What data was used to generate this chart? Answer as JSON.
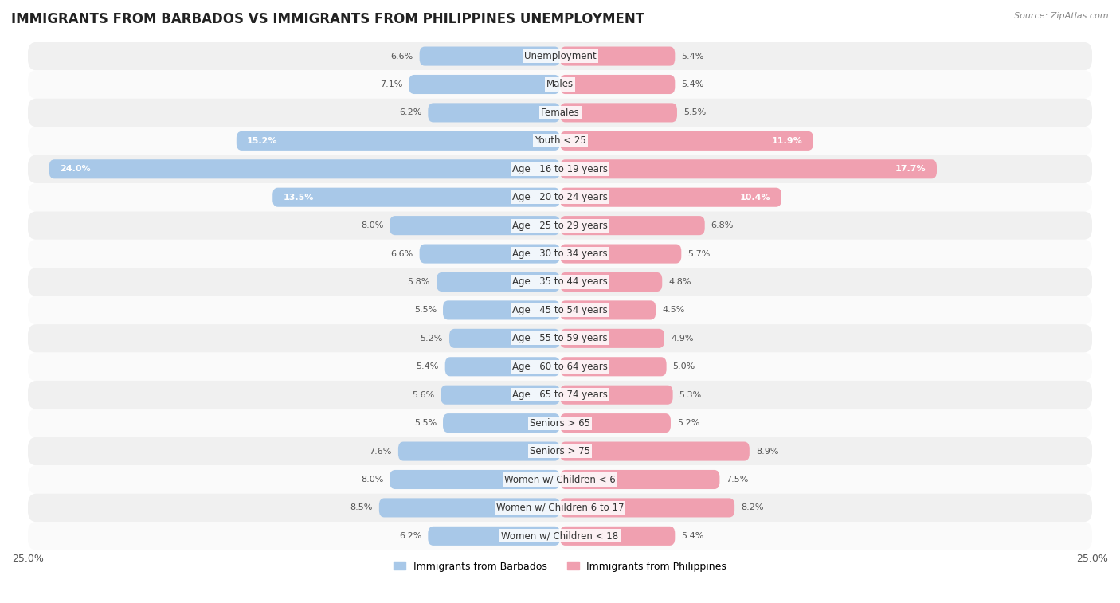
{
  "title": "IMMIGRANTS FROM BARBADOS VS IMMIGRANTS FROM PHILIPPINES UNEMPLOYMENT",
  "source": "Source: ZipAtlas.com",
  "categories": [
    "Unemployment",
    "Males",
    "Females",
    "Youth < 25",
    "Age | 16 to 19 years",
    "Age | 20 to 24 years",
    "Age | 25 to 29 years",
    "Age | 30 to 34 years",
    "Age | 35 to 44 years",
    "Age | 45 to 54 years",
    "Age | 55 to 59 years",
    "Age | 60 to 64 years",
    "Age | 65 to 74 years",
    "Seniors > 65",
    "Seniors > 75",
    "Women w/ Children < 6",
    "Women w/ Children 6 to 17",
    "Women w/ Children < 18"
  ],
  "barbados_values": [
    6.6,
    7.1,
    6.2,
    15.2,
    24.0,
    13.5,
    8.0,
    6.6,
    5.8,
    5.5,
    5.2,
    5.4,
    5.6,
    5.5,
    7.6,
    8.0,
    8.5,
    6.2
  ],
  "philippines_values": [
    5.4,
    5.4,
    5.5,
    11.9,
    17.7,
    10.4,
    6.8,
    5.7,
    4.8,
    4.5,
    4.9,
    5.0,
    5.3,
    5.2,
    8.9,
    7.5,
    8.2,
    5.4
  ],
  "barbados_color": "#a8c8e8",
  "philippines_color": "#f0a0b0",
  "row_bg_odd": "#f0f0f0",
  "row_bg_even": "#fafafa",
  "xlim": 25.0,
  "legend_barbados": "Immigrants from Barbados",
  "legend_philippines": "Immigrants from Philippines",
  "title_fontsize": 12,
  "label_fontsize": 8.5,
  "value_fontsize": 8.0
}
